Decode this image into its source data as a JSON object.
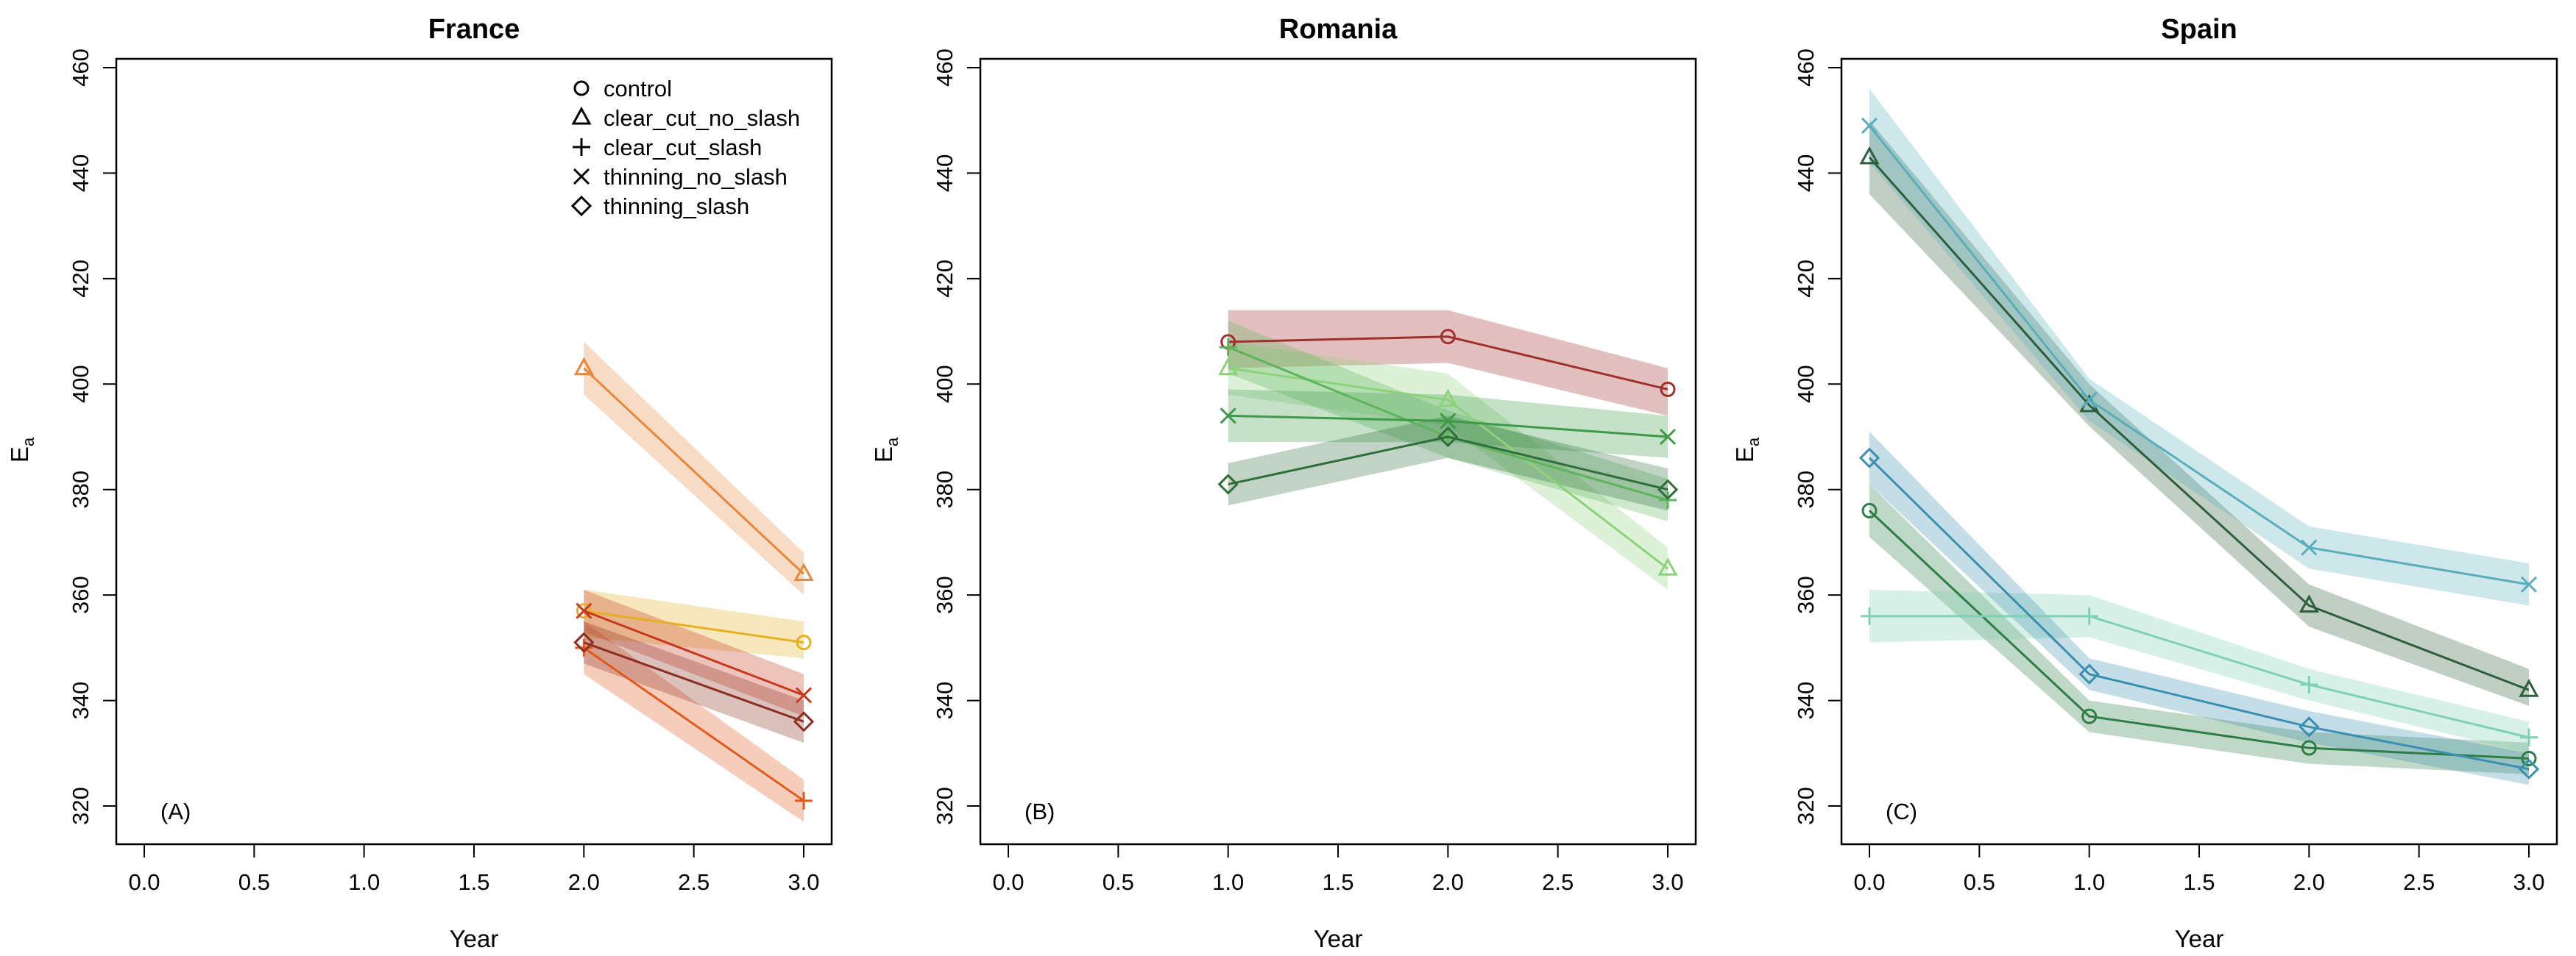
{
  "chart_data": [
    {
      "type": "line",
      "title": "France",
      "panel_label": "(A)",
      "xlabel": "Year",
      "ylabel": "E",
      "ylabel_subscript": "a",
      "xlim": [
        0,
        3
      ],
      "ylim": [
        320,
        460
      ],
      "xticks": [
        "0.0",
        "0.5",
        "1.0",
        "1.5",
        "2.0",
        "2.5",
        "3.0"
      ],
      "yticks": [
        "320",
        "340",
        "360",
        "380",
        "400",
        "420",
        "440",
        "460"
      ],
      "legend": {
        "position": "top-right",
        "entries": [
          {
            "label": "control",
            "marker": "circle"
          },
          {
            "label": "clear_cut_no_slash",
            "marker": "triangle"
          },
          {
            "label": "clear_cut_slash",
            "marker": "plus"
          },
          {
            "label": "thinning_no_slash",
            "marker": "cross"
          },
          {
            "label": "thinning_slash",
            "marker": "diamond"
          }
        ]
      },
      "series": [
        {
          "name": "control",
          "marker": "circle",
          "color": "#e6b020",
          "x": [
            2,
            3
          ],
          "y": [
            357,
            351
          ],
          "lower": [
            352,
            348
          ],
          "upper": [
            361,
            355
          ]
        },
        {
          "name": "clear_cut_no_slash",
          "marker": "triangle",
          "color": "#e8873a",
          "x": [
            2,
            3
          ],
          "y": [
            403,
            364
          ],
          "lower": [
            398,
            360
          ],
          "upper": [
            408,
            368
          ]
        },
        {
          "name": "clear_cut_slash",
          "marker": "plus",
          "color": "#e05a1e",
          "x": [
            2,
            3
          ],
          "y": [
            350,
            321
          ],
          "lower": [
            345,
            317
          ],
          "upper": [
            355,
            325
          ]
        },
        {
          "name": "thinning_no_slash",
          "marker": "cross",
          "color": "#c8381e",
          "x": [
            2,
            3
          ],
          "y": [
            357,
            341
          ],
          "lower": [
            353,
            337
          ],
          "upper": [
            361,
            345
          ]
        },
        {
          "name": "thinning_slash",
          "marker": "diamond",
          "color": "#8b2e22",
          "x": [
            2,
            3
          ],
          "y": [
            351,
            336
          ],
          "lower": [
            347,
            332
          ],
          "upper": [
            355,
            340
          ]
        }
      ]
    },
    {
      "type": "line",
      "title": "Romania",
      "panel_label": "(B)",
      "xlabel": "Year",
      "ylabel": "E",
      "ylabel_subscript": "a",
      "xlim": [
        0,
        3
      ],
      "ylim": [
        320,
        460
      ],
      "xticks": [
        "0.0",
        "0.5",
        "1.0",
        "1.5",
        "2.0",
        "2.5",
        "3.0"
      ],
      "yticks": [
        "320",
        "340",
        "360",
        "380",
        "400",
        "420",
        "440",
        "460"
      ],
      "series": [
        {
          "name": "control",
          "marker": "circle",
          "color": "#a0302a",
          "x": [
            1,
            2,
            3
          ],
          "y": [
            408,
            409,
            399
          ],
          "lower": [
            403,
            404,
            394
          ],
          "upper": [
            414,
            414,
            403
          ]
        },
        {
          "name": "clear_cut_no_slash",
          "marker": "triangle",
          "color": "#8cd27a",
          "x": [
            1,
            2,
            3
          ],
          "y": [
            403,
            397,
            365
          ],
          "lower": [
            398,
            392,
            361
          ],
          "upper": [
            408,
            402,
            369
          ]
        },
        {
          "name": "clear_cut_slash",
          "marker": "plus",
          "color": "#5cb55c",
          "x": [
            1,
            2,
            3
          ],
          "y": [
            407,
            390,
            378
          ],
          "lower": [
            402,
            386,
            374
          ],
          "upper": [
            412,
            395,
            382
          ]
        },
        {
          "name": "thinning_no_slash",
          "marker": "cross",
          "color": "#3e9a48",
          "x": [
            1,
            2,
            3
          ],
          "y": [
            394,
            393,
            390
          ],
          "lower": [
            389,
            389,
            386
          ],
          "upper": [
            399,
            398,
            394
          ]
        },
        {
          "name": "thinning_slash",
          "marker": "diamond",
          "color": "#2e6e3a",
          "x": [
            1,
            2,
            3
          ],
          "y": [
            381,
            390,
            380
          ],
          "lower": [
            377,
            386,
            376
          ],
          "upper": [
            385,
            394,
            384
          ]
        }
      ]
    },
    {
      "type": "line",
      "title": "Spain",
      "panel_label": "(C)",
      "xlabel": "Year",
      "ylabel": "E",
      "ylabel_subscript": "a",
      "xlim": [
        0,
        3
      ],
      "ylim": [
        320,
        460
      ],
      "xticks": [
        "0.0",
        "0.5",
        "1.0",
        "1.5",
        "2.0",
        "2.5",
        "3.0"
      ],
      "yticks": [
        "320",
        "340",
        "360",
        "380",
        "400",
        "420",
        "440",
        "460"
      ],
      "series": [
        {
          "name": "control",
          "marker": "circle",
          "color": "#2e7d46",
          "x": [
            0,
            1,
            2,
            3
          ],
          "y": [
            376,
            337,
            331,
            329
          ],
          "lower": [
            371,
            334,
            328,
            326
          ],
          "upper": [
            381,
            340,
            334,
            332
          ]
        },
        {
          "name": "clear_cut_no_slash",
          "marker": "triangle",
          "color": "#2d5e3c",
          "x": [
            0,
            1,
            2,
            3
          ],
          "y": [
            443,
            396,
            358,
            342
          ],
          "lower": [
            436,
            392,
            354,
            339
          ],
          "upper": [
            450,
            400,
            362,
            346
          ]
        },
        {
          "name": "clear_cut_slash",
          "marker": "plus",
          "color": "#7fd0b4",
          "x": [
            0,
            1,
            2,
            3
          ],
          "y": [
            356,
            356,
            343,
            333
          ],
          "lower": [
            351,
            352,
            340,
            330
          ],
          "upper": [
            361,
            360,
            346,
            336
          ]
        },
        {
          "name": "thinning_no_slash",
          "marker": "cross",
          "color": "#5aaebc",
          "x": [
            0,
            1,
            2,
            3
          ],
          "y": [
            449,
            397,
            369,
            362
          ],
          "lower": [
            442,
            393,
            365,
            358
          ],
          "upper": [
            456,
            401,
            373,
            366
          ]
        },
        {
          "name": "thinning_slash",
          "marker": "diamond",
          "color": "#3a8fb0",
          "x": [
            0,
            1,
            2,
            3
          ],
          "y": [
            386,
            345,
            335,
            327
          ],
          "lower": [
            381,
            342,
            332,
            324
          ],
          "upper": [
            391,
            348,
            338,
            330
          ]
        }
      ]
    }
  ]
}
